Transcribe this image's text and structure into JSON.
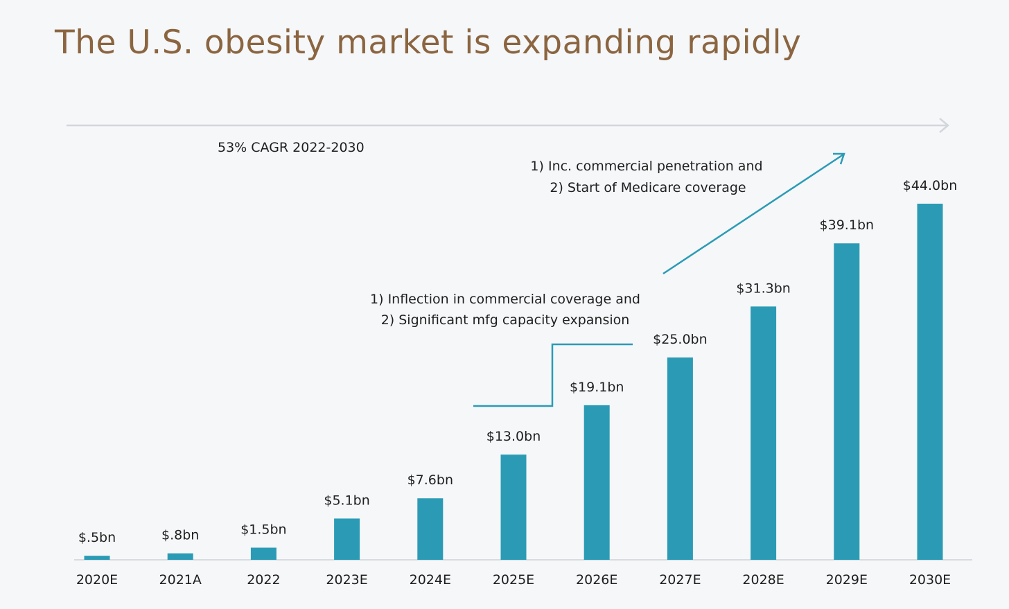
{
  "chart_data": {
    "type": "bar",
    "title": "The U.S. obesity market is expanding rapidly",
    "categories": [
      "2020E",
      "2021A",
      "2022",
      "2023E",
      "2024E",
      "2025E",
      "2026E",
      "2027E",
      "2028E",
      "2029E",
      "2030E"
    ],
    "values": [
      0.5,
      0.8,
      1.5,
      5.1,
      7.6,
      13.0,
      19.1,
      25.0,
      31.3,
      39.1,
      44.0
    ],
    "value_labels": [
      "$.5bn",
      "$.8bn",
      "$1.5bn",
      "$5.1bn",
      "$7.6bn",
      "$13.0bn",
      "$19.1bn",
      "$25.0bn",
      "$31.3bn",
      "$39.1bn",
      "$44.0bn"
    ],
    "ylim": [
      0,
      44
    ],
    "xlabel": "",
    "ylabel": "",
    "grid": false,
    "colors": {
      "bar": "#2b9bb5",
      "title": "#8b6540",
      "arrow": "#d3d6da"
    },
    "annotations": {
      "cagr": "53% CAGR 2022-2030",
      "step_note": [
        "1) Inflection in commercial coverage and",
        "2) Significant mfg capacity expansion"
      ],
      "arrow_note": [
        "1) Inc. commercial penetration and",
        "2) Start of Medicare coverage"
      ]
    }
  }
}
